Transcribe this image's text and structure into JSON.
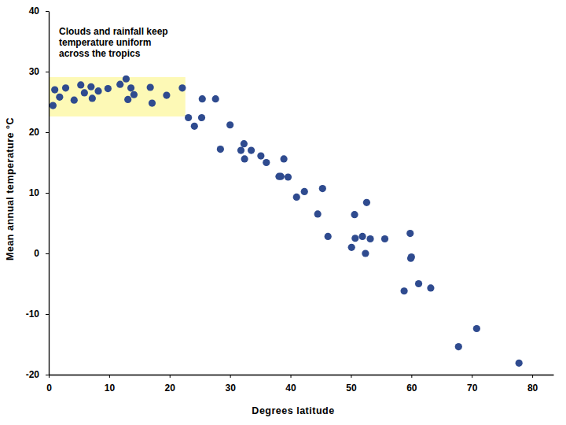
{
  "chart_data": {
    "type": "scatter",
    "xlabel": "Degrees latitude",
    "ylabel": "Mean annual temperature °C",
    "x": [
      0.7,
      1.0,
      1.8,
      2.8,
      4.2,
      5.3,
      5.9,
      7.0,
      7.2,
      8.2,
      9.8,
      11.8,
      12.8,
      13.1,
      13.6,
      14.1,
      16.8,
      17.1,
      19.5,
      22.1,
      23.1,
      24.1,
      25.3,
      25.4,
      27.6,
      28.4,
      30.0,
      31.8,
      32.3,
      32.4,
      33.5,
      35.1,
      36.0,
      38.1,
      38.4,
      38.9,
      39.6,
      41.0,
      42.3,
      44.5,
      45.3,
      46.2,
      50.1,
      50.6,
      50.7,
      51.9,
      52.4,
      52.6,
      53.2,
      55.6,
      58.8,
      59.8,
      59.9,
      60.0,
      61.2,
      63.2,
      67.8,
      70.8,
      77.8
    ],
    "values": [
      24.4,
      27.0,
      25.8,
      27.3,
      25.3,
      27.8,
      26.5,
      27.5,
      25.6,
      26.8,
      27.2,
      27.9,
      28.8,
      25.4,
      27.3,
      26.2,
      27.4,
      24.8,
      26.1,
      27.3,
      22.4,
      21.0,
      22.4,
      25.5,
      25.5,
      17.2,
      21.2,
      17.0,
      18.1,
      15.6,
      17.0,
      16.1,
      15.0,
      12.7,
      12.7,
      15.6,
      12.6,
      9.3,
      10.2,
      6.5,
      10.7,
      2.8,
      1.0,
      6.4,
      2.5,
      2.8,
      0.0,
      8.4,
      2.4,
      2.4,
      -6.2,
      3.3,
      -0.8,
      -0.6,
      -5.0,
      -5.7,
      -15.4,
      -12.4,
      -18.1
    ],
    "color": "#2f4b8f",
    "marker": "circle",
    "xlim": [
      0,
      83.5
    ],
    "ylim": [
      -20,
      40
    ],
    "xticks": [
      0,
      10,
      20,
      30,
      40,
      50,
      60,
      70,
      80
    ],
    "yticks": [
      -20,
      -10,
      0,
      10,
      20,
      30,
      40
    ],
    "grid": false,
    "annotations": [
      {
        "text": [
          "Clouds and rainfall keep",
          "temperature uniform",
          "across the tropics"
        ],
        "x": [
          0,
          22.6
        ],
        "y": [
          22.6,
          29.1
        ],
        "color": "#fdf9b6"
      }
    ]
  }
}
